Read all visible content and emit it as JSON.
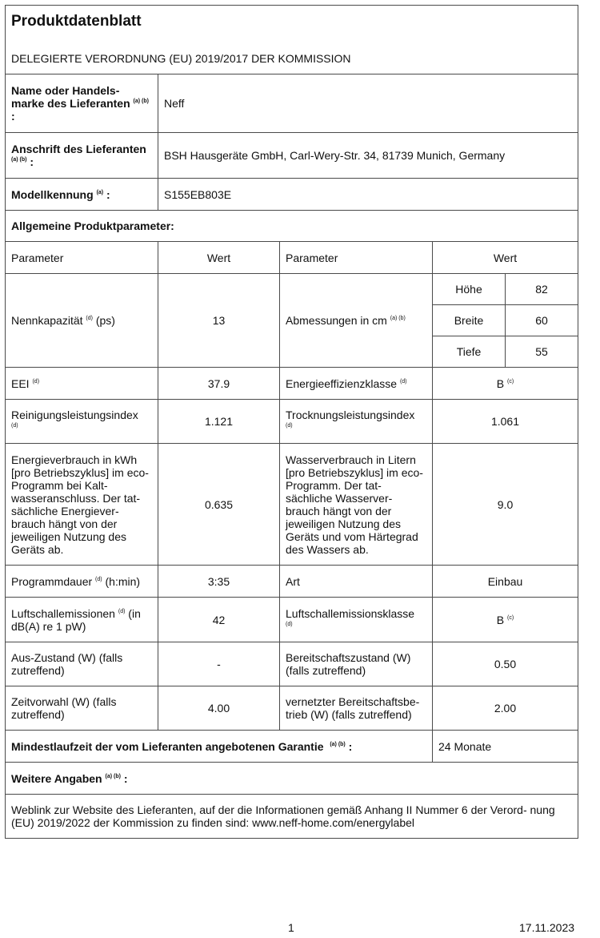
{
  "title": "Produktdatenblatt",
  "subtitle": "DELEGIERTE VERORDNUNG (EU) 2019/2017 DER KOMMISSION",
  "supplier": {
    "name_label": "Name oder Handels- marke des Lieferanten",
    "name_sup": "(a) (b)",
    "name_suffix": " :",
    "name_value": "Neff",
    "address_label": "Anschrift des Lieferanten",
    "address_sup": "(a) (b)",
    "address_suffix": " :",
    "address_value": "BSH Hausgeräte GmbH, Carl-Wery-Str. 34, 81739 Munich, Germany",
    "model_label": "Modellkennung",
    "model_sup": "(a)",
    "model_suffix": " :",
    "model_value": "S155EB803E"
  },
  "general_label": "Allgemeine Produktparameter:",
  "headers": {
    "param": "Parameter",
    "value": "Wert"
  },
  "rows": {
    "capacity": {
      "label": "Nennkapazität",
      "sup": "(d)",
      "unit": " (ps)",
      "value": "13"
    },
    "dimensions": {
      "label": "Abmessungen in cm",
      "sup": "(a) (b)",
      "height_label": "Höhe",
      "height": "82",
      "width_label": "Breite",
      "width": "60",
      "depth_label": "Tiefe",
      "depth": "55"
    },
    "eei": {
      "label": "EEI",
      "sup": "(d)",
      "value": "37.9"
    },
    "energy_class": {
      "label": "Energieeffizienzklasse",
      "sup": "(d)",
      "value": "B",
      "value_sup": "(c)"
    },
    "cleaning": {
      "label": "Reinigungsleistungsindex",
      "sup": "(d)",
      "value": "1.121"
    },
    "drying": {
      "label": "Trocknungsleistungsindex",
      "sup": "(d)",
      "value": "1.061"
    },
    "energy": {
      "label": "Energieverbrauch in kWh [pro Betriebszyklus] im eco-Programm bei Kalt- wasseranschluss. Der tat- sächliche Energiever- brauch hängt von der jeweiligen Nutzung des Geräts ab.",
      "value": "0.635"
    },
    "water": {
      "label": "Wasserverbrauch in Litern [pro Betriebszyklus] im eco-Programm. Der tat- sächliche Wasserver- brauch hängt von der jeweiligen Nutzung des Geräts und vom Härtegrad des Wassers ab.",
      "value": "9.0"
    },
    "duration": {
      "label": "Programmdauer",
      "sup": "(d)",
      "unit": " (h:min)",
      "value": "3:35"
    },
    "type": {
      "label": "Art",
      "value": "Einbau"
    },
    "noise": {
      "label": "Luftschallemissionen",
      "sup": "(d)",
      "unit": " (in dB(A) re 1 pW)",
      "value": "42"
    },
    "noise_class": {
      "label": "Luftschallemissionsklasse",
      "sup": "(d)",
      "value": "B",
      "value_sup": "(c)"
    },
    "off": {
      "label": "Aus-Zustand (W) (falls zutreffend)",
      "value": "-"
    },
    "standby": {
      "label": "Bereitschaftszustand (W) (falls zutreffend)",
      "value": "0.50"
    },
    "delay": {
      "label": "Zeitvorwahl (W) (falls zutreffend)",
      "value": "4.00"
    },
    "networked": {
      "label": "vernetzter Bereitschaftsbe- trieb (W) (falls zutreffend)",
      "value": "2.00"
    }
  },
  "warranty": {
    "label": "Mindestlaufzeit der vom Lieferanten angebotenen Garantie",
    "sup": "(a) (b)",
    "suffix": " :",
    "value": "24 Monate"
  },
  "further": {
    "label": "Weitere Angaben",
    "sup": "(a) (b)",
    "suffix": " :",
    "text": "Weblink zur Website des Lieferanten, auf der die Informationen gemäß Anhang II Nummer 6 der Verord- nung (EU) 2019/2022 der Kommission zu finden sind: www.neff-home.com/energylabel"
  },
  "footer": {
    "page": "1",
    "date": "17.11.2023"
  }
}
